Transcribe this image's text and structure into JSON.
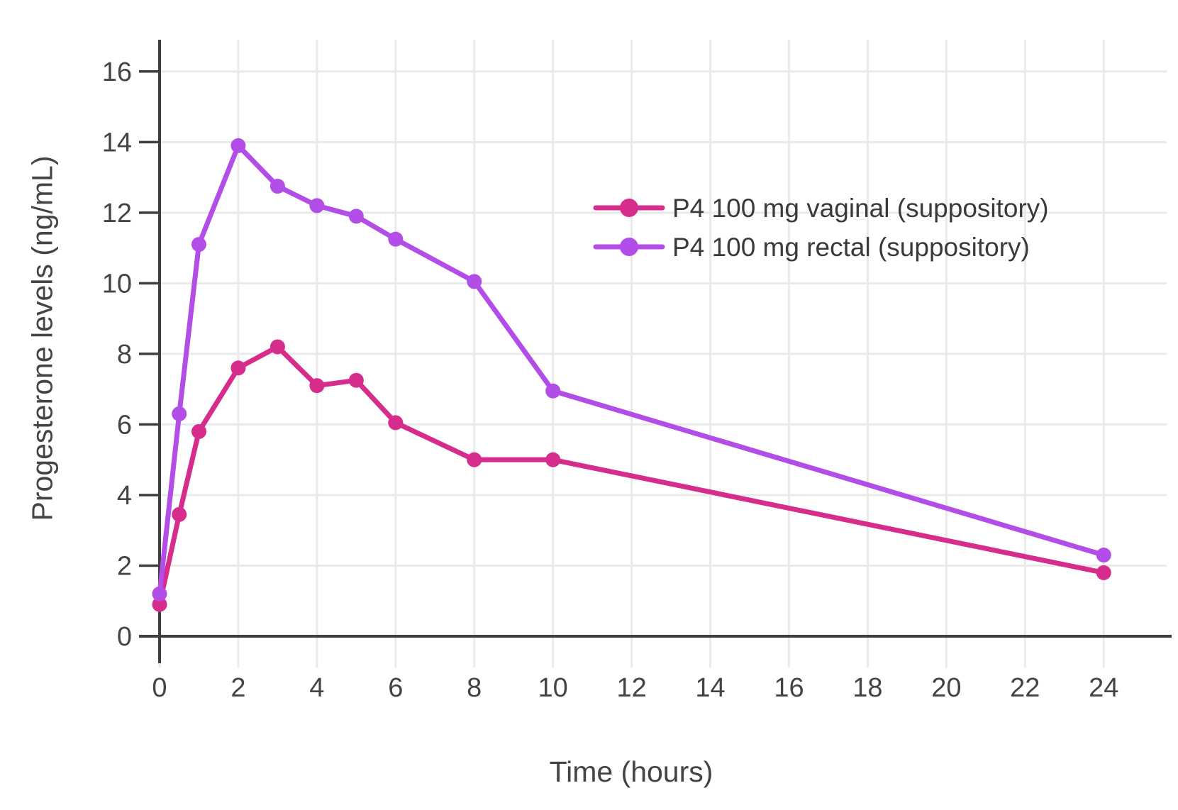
{
  "chart_data": {
    "type": "line",
    "x": [
      0,
      0.5,
      1,
      2,
      3,
      4,
      5,
      6,
      8,
      10,
      24
    ],
    "series": [
      {
        "name": "P4 100 mg vaginal (suppository)",
        "color": "#d62d8c",
        "values": [
          0.9,
          3.45,
          5.8,
          7.6,
          8.2,
          7.1,
          7.25,
          6.05,
          5.0,
          5.0,
          1.8
        ]
      },
      {
        "name": "P4 100 mg rectal (suppository)",
        "color": "#b24de8",
        "values": [
          1.2,
          6.3,
          11.1,
          13.9,
          12.75,
          12.2,
          11.9,
          11.25,
          10.05,
          6.95,
          2.3
        ]
      }
    ],
    "title": "",
    "xlabel": "Time (hours)",
    "ylabel": "Progesterone levels (ng/mL)",
    "x_ticks": [
      0,
      2,
      4,
      6,
      8,
      10,
      12,
      14,
      16,
      18,
      20,
      22,
      24
    ],
    "y_ticks": [
      0,
      2,
      4,
      6,
      8,
      10,
      12,
      14,
      16
    ],
    "xlim": [
      0,
      25.6
    ],
    "ylim": [
      0,
      16.9
    ],
    "grid": true,
    "legend_position": "inside-upper-right",
    "colors": {
      "axis_text": "#444444",
      "axis_line": "#3e3e3e",
      "gridline": "#eaeaea",
      "background": "#ffffff"
    }
  }
}
